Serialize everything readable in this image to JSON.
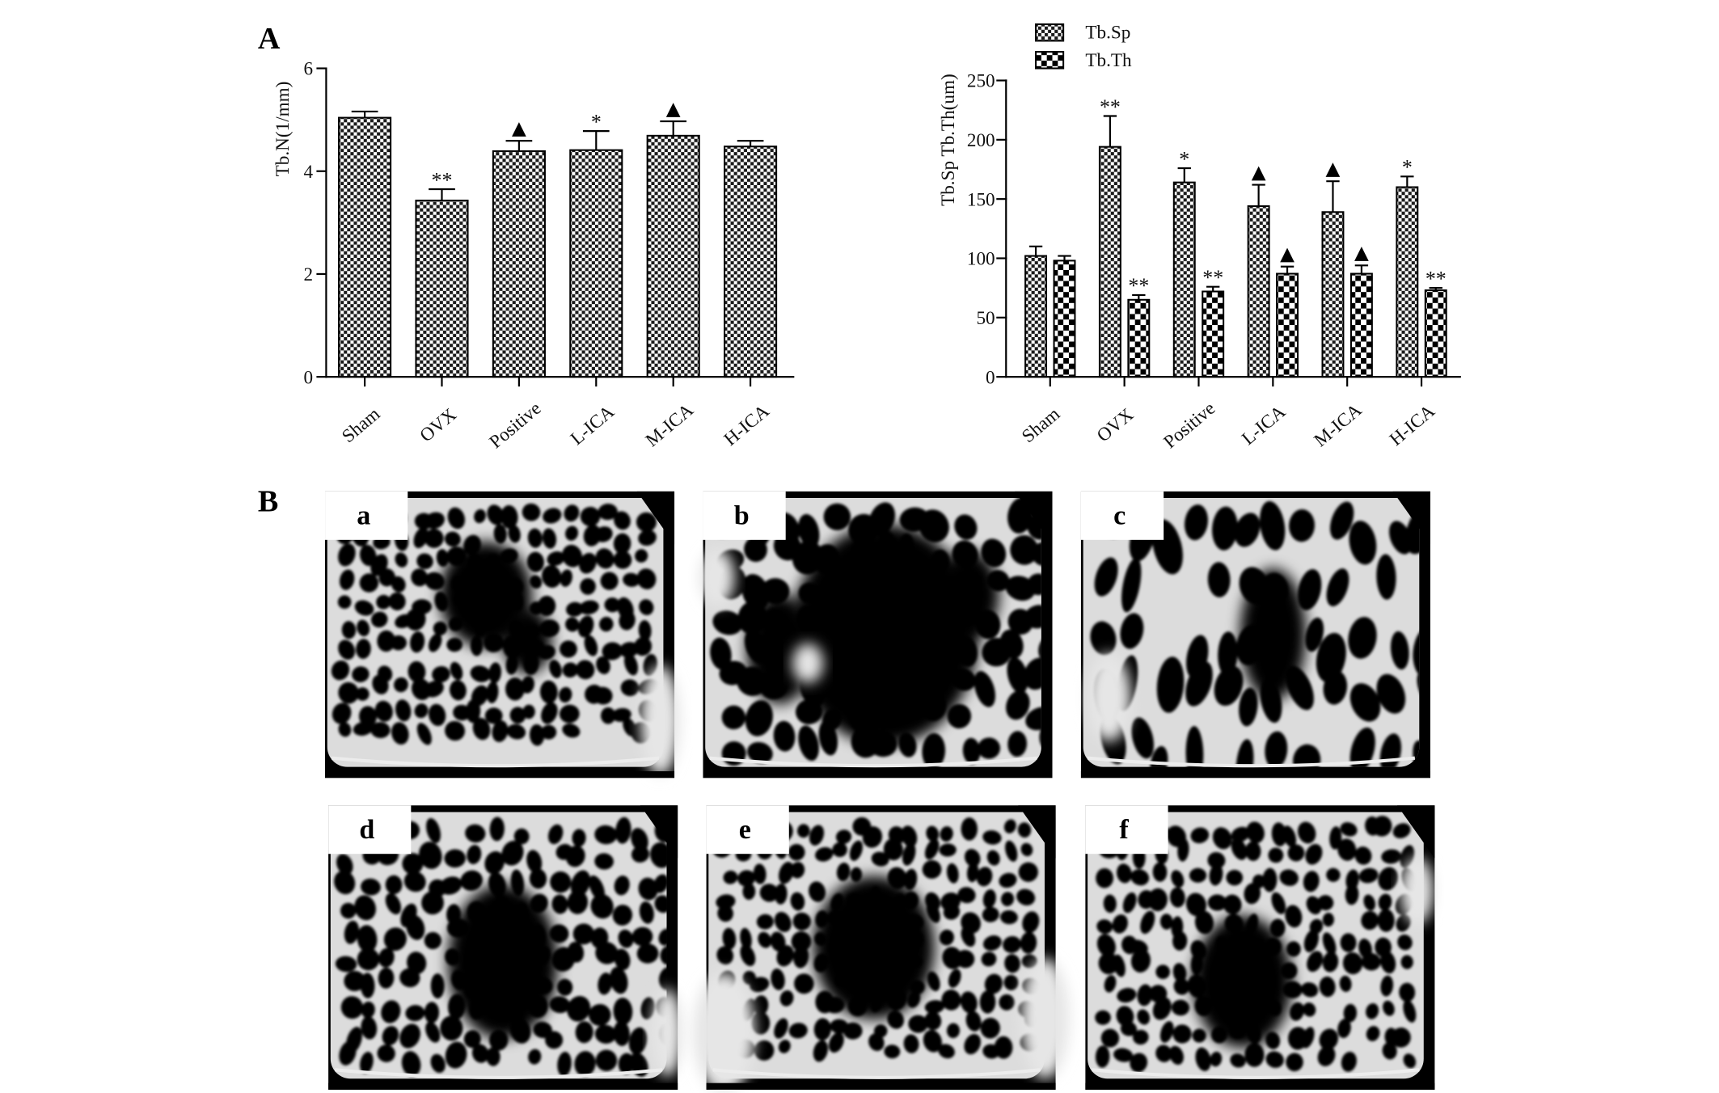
{
  "panel_labels": {
    "a": "A",
    "b": "B"
  },
  "chart_data": [
    {
      "type": "bar",
      "ylabel": "Tb.N(1/mm)",
      "categories": [
        "Sham",
        "OVX",
        "Positive",
        "L-ICA",
        "M-ICA",
        "H-ICA"
      ],
      "ylim": [
        0,
        6
      ],
      "yticks": [
        0,
        2,
        4,
        6
      ],
      "grid": false,
      "series": [
        {
          "values": [
            5.04,
            3.43,
            4.39,
            4.41,
            4.69,
            4.48
          ],
          "errors": [
            0.12,
            0.22,
            0.2,
            0.37,
            0.28,
            0.11
          ],
          "annotations": [
            "",
            "**",
            "▲",
            "*",
            "▲",
            ""
          ],
          "fill_pattern": "fine-checker"
        }
      ]
    },
    {
      "type": "bar",
      "ylabel": "Tb.Sp Tb.Th(um)",
      "categories": [
        "Sham",
        "OVX",
        "Positive",
        "L-ICA",
        "M-ICA",
        "H-ICA"
      ],
      "ylim": [
        0,
        250
      ],
      "yticks": [
        0,
        50,
        100,
        150,
        200,
        250
      ],
      "grid": false,
      "legend_position": "top-left",
      "series": [
        {
          "name": "Tb.Sp",
          "values": [
            102,
            194,
            164,
            144,
            139,
            160
          ],
          "errors": [
            8,
            26,
            12,
            18,
            26,
            9
          ],
          "annotations": [
            "",
            "**",
            "*",
            "▲",
            "▲",
            "*"
          ],
          "fill_pattern": "fine-checker"
        },
        {
          "name": "Tb.Th",
          "values": [
            98,
            65,
            72,
            87,
            87,
            73
          ],
          "errors": [
            4,
            4,
            4,
            6,
            7,
            2
          ],
          "annotations": [
            "",
            "**",
            "**",
            "▲",
            "▲",
            "**"
          ],
          "fill_pattern": "coarse-checker"
        }
      ]
    }
  ],
  "panel_b": {
    "images": [
      {
        "label": "a"
      },
      {
        "label": "b"
      },
      {
        "label": "c"
      },
      {
        "label": "d"
      },
      {
        "label": "e"
      },
      {
        "label": "f"
      }
    ]
  }
}
